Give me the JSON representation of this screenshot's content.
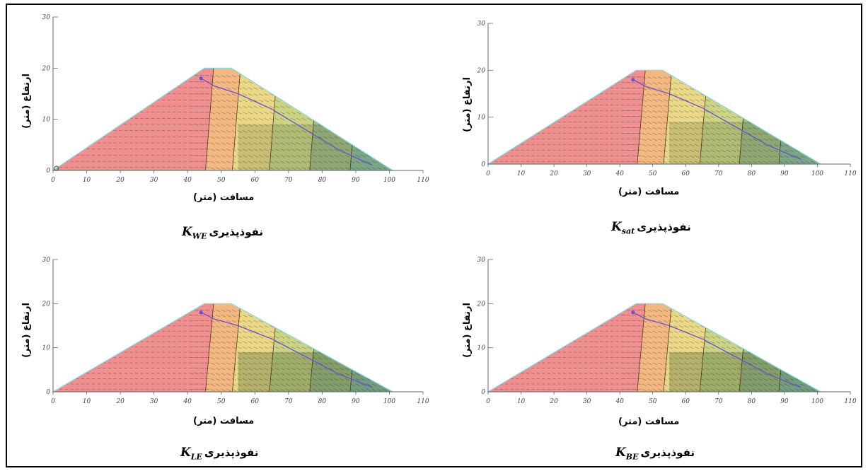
{
  "panels": [
    {
      "id": "kwe",
      "ylabel": "ارتفاع (متر)",
      "xlabel": "مسافت (متر)",
      "caption": {
        "symbol": "K",
        "sub": "WE",
        "word": "نفوذپذیری"
      },
      "x_ticks": [
        0,
        10,
        20,
        30,
        40,
        50,
        60,
        70,
        80,
        90,
        100,
        110
      ],
      "y_ticks": [
        0,
        10,
        20,
        30
      ],
      "xlim": [
        0,
        110
      ],
      "ylim": [
        0,
        30
      ],
      "origin_marker": true
    },
    {
      "id": "ksat",
      "ylabel": "ارتفاع (متر)",
      "xlabel": "مسافت (متر)",
      "caption": {
        "symbol": "K",
        "sub": "sat",
        "word": "نفوذپذیری"
      },
      "x_ticks": [
        0,
        10,
        20,
        30,
        40,
        50,
        60,
        70,
        80,
        90,
        100,
        110
      ],
      "y_ticks": [
        0,
        10,
        20,
        30
      ],
      "xlim": [
        0,
        110
      ],
      "ylim": [
        0,
        30
      ],
      "origin_marker": false
    },
    {
      "id": "kle",
      "ylabel": "ارتفاع (متر)",
      "xlabel": "مسافت (متر)",
      "caption": {
        "symbol": "K",
        "sub": "LE",
        "word": "نفوذپذیری"
      },
      "x_ticks": [
        0,
        10,
        20,
        30,
        40,
        50,
        60,
        70,
        80,
        90,
        100,
        110
      ],
      "y_ticks": [
        0,
        10,
        20,
        30
      ],
      "xlim": [
        0,
        110
      ],
      "ylim": [
        0,
        30
      ],
      "origin_marker": false
    },
    {
      "id": "kbe",
      "ylabel": "ارتفاع (متر)",
      "xlabel": "مسافت (متر)",
      "caption": {
        "symbol": "K",
        "sub": "BE",
        "word": "نفوذپذیری"
      },
      "x_ticks": [
        0,
        10,
        20,
        30,
        40,
        50,
        60,
        70,
        80,
        90,
        100,
        110
      ],
      "y_ticks": [
        0,
        10,
        20,
        30
      ],
      "xlim": [
        0,
        110
      ],
      "ylim": [
        0,
        30
      ],
      "origin_marker": false
    }
  ],
  "dam": {
    "toe_upstream": [
      0,
      0
    ],
    "crest_left": [
      45,
      20
    ],
    "crest_right": [
      53,
      20
    ],
    "toe_downstream": [
      101,
      0
    ],
    "phreatic_line": [
      [
        44,
        18
      ],
      [
        48,
        16.5
      ],
      [
        55,
        15
      ],
      [
        65,
        12
      ],
      [
        75,
        8
      ],
      [
        85,
        4
      ],
      [
        95,
        1
      ]
    ]
  },
  "colors": {
    "upstream_shell": "#ee8585",
    "core": "#f2b277",
    "transition": "#e9d57c",
    "downstream_1": "#c8cf7a",
    "downstream_2": "#9db878",
    "downstream_3": "#86b594",
    "outline": "#86d7df",
    "phreatic": "#6a4fd0",
    "vectors": "#111111"
  }
}
